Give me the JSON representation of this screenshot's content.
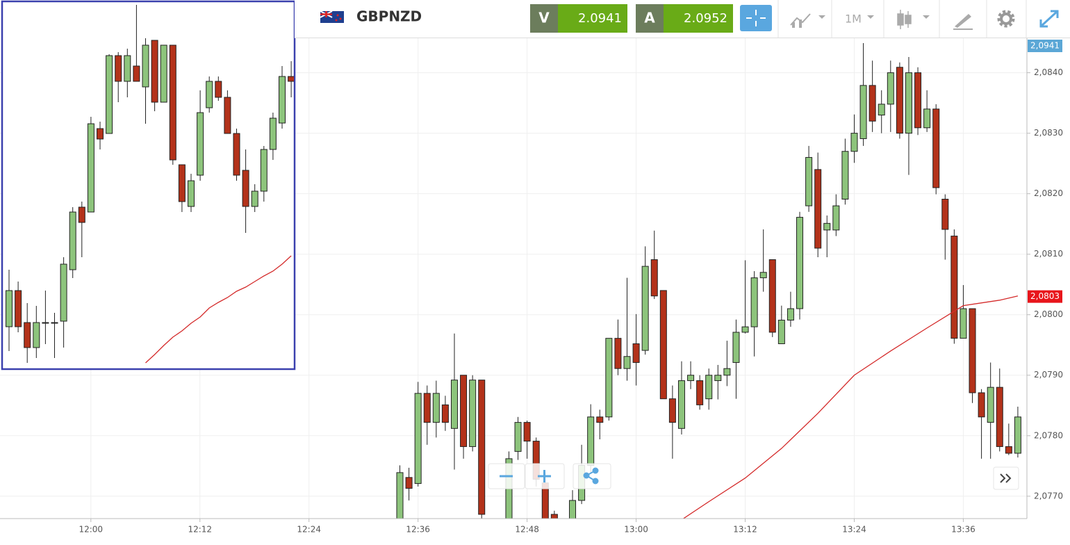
{
  "toolbar": {
    "symbol": "GBPNZD",
    "bid_label": "V",
    "bid": "2.0941",
    "ask_label": "A",
    "ask": "2.0952",
    "timeframe": "1M"
  },
  "chart_data": [
    {
      "type": "candlestick",
      "x": [
        "12:34",
        "12:35",
        "12:36",
        "12:37",
        "12:38",
        "12:39",
        "12:40",
        "12:41",
        "12:42",
        "12:43",
        "12:46",
        "12:47",
        "12:48",
        "12:49",
        "12:50",
        "12:51",
        "12:53",
        "12:54",
        "12:55",
        "12:56",
        "12:57",
        "12:58",
        "12:59",
        "13:00",
        "13:01",
        "13:02",
        "13:03",
        "13:04",
        "13:05",
        "13:06",
        "13:07",
        "13:08",
        "13:09",
        "13:10",
        "13:11",
        "13:12",
        "13:13",
        "13:14",
        "13:15",
        "13:16",
        "13:17",
        "13:18",
        "13:19",
        "13:20",
        "13:21",
        "13:22",
        "13:23",
        "13:24",
        "13:25",
        "13:26",
        "13:27",
        "13:28",
        "13:29",
        "13:30",
        "13:31",
        "13:32",
        "13:33",
        "13:34",
        "13:35",
        "13:36",
        "13:37",
        "13:38",
        "13:39",
        "13:40",
        "13:41",
        "13:42"
      ],
      "open": [
        2.07659,
        2.07731,
        2.07721,
        2.0787,
        2.07822,
        2.07851,
        2.07812,
        2.079,
        2.07782,
        2.07892,
        2.07659,
        2.07774,
        2.07822,
        2.07791,
        2.07722,
        2.0767,
        2.07659,
        2.07693,
        2.07751,
        2.07831,
        2.07831,
        2.07961,
        2.07911,
        2.07952,
        2.07941,
        2.08091,
        2.0804,
        2.07861,
        2.07812,
        2.07891,
        2.07891,
        2.07861,
        2.07891,
        2.079,
        2.07921,
        2.07971,
        2.0798,
        2.08061,
        2.08091,
        2.07952,
        2.07991,
        2.0801,
        2.0818,
        2.0824,
        2.0814,
        2.0814,
        2.08191,
        2.0827,
        2.08291,
        2.08379,
        2.0833,
        2.08348,
        2.08409,
        2.083,
        2.084,
        2.08309,
        2.0834,
        2.08191,
        2.0813,
        2.07961,
        2.0801,
        2.07871,
        2.07822,
        2.0788,
        2.07782,
        2.07771
      ],
      "high": [
        2.07751,
        2.07747,
        2.07889,
        2.07883,
        2.07891,
        2.07866,
        2.07969,
        2.079,
        2.079,
        2.07892,
        2.07774,
        2.07831,
        2.07825,
        2.07797,
        2.07739,
        2.07676,
        2.0771,
        2.07785,
        2.07852,
        2.07843,
        2.07961,
        2.07992,
        2.08061,
        2.08001,
        2.08113,
        2.08139,
        2.0804,
        2.07883,
        2.07923,
        2.07923,
        2.079,
        2.07911,
        2.07917,
        2.07957,
        2.07992,
        2.0809,
        2.08072,
        2.08141,
        2.08091,
        2.08015,
        2.08038,
        2.0817,
        2.08279,
        2.08268,
        2.08164,
        2.08199,
        2.08291,
        2.08331,
        2.08449,
        2.0842,
        2.08371,
        2.0842,
        2.08417,
        2.08426,
        2.08409,
        2.08371,
        2.08348,
        2.08199,
        2.08141,
        2.08049,
        2.0801,
        2.07877,
        2.07921,
        2.07911,
        2.0782,
        2.07848
      ],
      "low": [
        2.07659,
        2.07693,
        2.07716,
        2.07785,
        2.07797,
        2.07808,
        2.07744,
        2.07762,
        2.07774,
        2.07659,
        2.07659,
        2.0776,
        2.07762,
        2.07716,
        2.07659,
        2.07659,
        2.07659,
        2.07687,
        2.07739,
        2.07794,
        2.07825,
        2.079,
        2.07891,
        2.07883,
        2.07934,
        2.08026,
        2.07861,
        2.07762,
        2.07802,
        2.07877,
        2.07843,
        2.07843,
        2.0786,
        2.07882,
        2.07861,
        2.07969,
        2.07931,
        2.08038,
        2.07963,
        2.07952,
        2.0798,
        2.07992,
        2.0817,
        2.08095,
        2.08095,
        2.0813,
        2.08182,
        2.08251,
        2.08279,
        2.08302,
        2.083,
        2.08302,
        2.08291,
        2.08231,
        2.08297,
        2.08302,
        2.08199,
        2.08091,
        2.07952,
        2.07961,
        2.07854,
        2.07762,
        2.07762,
        2.07774,
        2.07768,
        2.07764
      ],
      "close": [
        2.07739,
        2.07713,
        2.0787,
        2.07822,
        2.0787,
        2.07822,
        2.07892,
        2.07782,
        2.07892,
        2.0767,
        2.07762,
        2.07822,
        2.07791,
        2.07728,
        2.07659,
        2.07659,
        2.07693,
        2.07751,
        2.07831,
        2.07822,
        2.07961,
        2.07911,
        2.07931,
        2.07921,
        2.0808,
        2.08031,
        2.07861,
        2.07822,
        2.07891,
        2.079,
        2.07851,
        2.079,
        2.079,
        2.07911,
        2.07971,
        2.0798,
        2.08061,
        2.0807,
        2.07971,
        2.07991,
        2.0801,
        2.08161,
        2.0826,
        2.0811,
        2.08151,
        2.0818,
        2.0827,
        2.083,
        2.08379,
        2.0832,
        2.08348,
        2.084,
        2.083,
        2.084,
        2.08309,
        2.0834,
        2.0821,
        2.08141,
        2.07961,
        2.0801,
        2.07871,
        2.07831,
        2.0788,
        2.07782,
        2.07771,
        2.07831
      ],
      "up_color": "#8dc47c",
      "down_color": "#b3321a",
      "ma": {
        "color": "#d42a2a",
        "x": [
          "13:05",
          "13:08",
          "13:12",
          "13:16",
          "13:20",
          "13:24",
          "13:28",
          "13:32",
          "13:36",
          "13:40",
          "13:42"
        ],
        "values": [
          2.07661,
          2.07691,
          2.0773,
          2.07779,
          2.07837,
          2.079,
          2.0794,
          2.07978,
          2.08015,
          2.08024,
          2.08031
        ]
      },
      "xlim": [
        "11:50",
        "13:43"
      ],
      "xticks": [
        "12:00",
        "12:12",
        "12:24",
        "12:36",
        "12:48",
        "13:00",
        "13:12",
        "13:24",
        "13:36"
      ],
      "ylim": [
        2.07663,
        2.08457
      ],
      "yticks": [
        {
          "value": 2.077,
          "label": "2,0770"
        },
        {
          "value": 2.078,
          "label": "2,0780"
        },
        {
          "value": 2.079,
          "label": "2,0790"
        },
        {
          "value": 2.08,
          "label": "2,0800"
        },
        {
          "value": 2.081,
          "label": "2,0810"
        },
        {
          "value": 2.082,
          "label": "2,0820"
        },
        {
          "value": 2.083,
          "label": "2,0830"
        },
        {
          "value": 2.084,
          "label": "2,0840"
        }
      ],
      "grid": true,
      "price_tags": [
        {
          "value": 2.0941,
          "label": "2,0941",
          "color": "#5ba7d6"
        },
        {
          "value": 2.0803,
          "label": "2,0803",
          "color": "#e8151b"
        }
      ]
    },
    {
      "type": "candlestick",
      "open": [
        61,
        113,
        67,
        31,
        67,
        67,
        69,
        143,
        233,
        226,
        346,
        339,
        451,
        414,
        436,
        406,
        473,
        384,
        466,
        294,
        234,
        279,
        376,
        414,
        391,
        339,
        286,
        234,
        256,
        316,
        354,
        421
      ],
      "high": [
        143,
        126,
        95,
        91,
        113,
        81,
        161,
        233,
        241,
        363,
        356,
        453,
        456,
        461,
        524,
        476,
        473,
        466,
        466,
        294,
        281,
        401,
        421,
        421,
        401,
        346,
        316,
        266,
        321,
        369,
        436,
        443
      ],
      "low": [
        26,
        53,
        9,
        16,
        36,
        16,
        31,
        131,
        161,
        226,
        316,
        339,
        384,
        391,
        414,
        353,
        371,
        384,
        294,
        226,
        226,
        271,
        369,
        386,
        339,
        271,
        196,
        226,
        241,
        301,
        346,
        391
      ],
      "close": [
        113,
        61,
        31,
        67,
        67,
        67,
        151,
        226,
        211,
        353,
        331,
        451,
        414,
        451,
        414,
        466,
        384,
        466,
        301,
        241,
        271,
        369,
        414,
        391,
        339,
        279,
        234,
        256,
        316,
        361,
        421,
        414
      ],
      "up_color": "#8dc47c",
      "down_color": "#b3321a",
      "ma": {
        "color": "#d42a2a",
        "values": [
          null,
          null,
          null,
          null,
          null,
          null,
          null,
          null,
          null,
          null,
          null,
          null,
          null,
          null,
          null,
          9,
          21,
          34,
          46,
          55,
          66,
          75,
          88,
          96,
          103,
          112,
          118,
          126,
          134,
          141,
          151,
          163
        ]
      },
      "ylim": [
        0,
        529
      ]
    }
  ]
}
